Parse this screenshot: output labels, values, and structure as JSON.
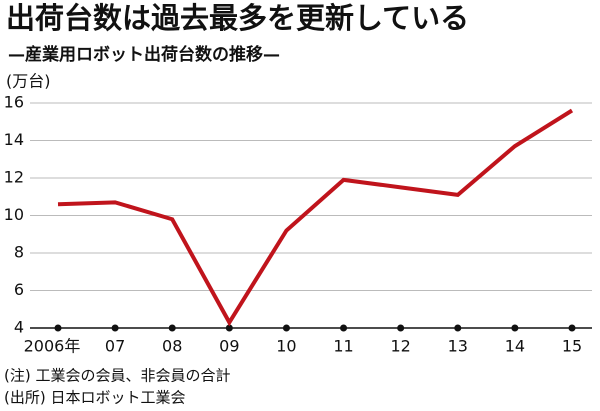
{
  "chart_data": {
    "type": "line",
    "title": "出荷台数は過去最多を更新している",
    "subtitle": "—産業用ロボット出荷台数の推移—",
    "y_label": "(万台)",
    "categories": [
      "2006年",
      "07",
      "08",
      "09",
      "10",
      "11",
      "12",
      "13",
      "14",
      "15"
    ],
    "values": [
      10.6,
      10.7,
      9.8,
      4.3,
      9.2,
      11.9,
      11.5,
      11.1,
      13.7,
      15.6
    ],
    "color": "#c0141c",
    "ylim": [
      4,
      16
    ],
    "yticks": [
      4,
      6,
      8,
      10,
      12,
      14,
      16
    ],
    "grid": true,
    "notes": [
      "(注) 工業会の会員、非会員の合計",
      "(出所) 日本ロボット工業会"
    ]
  }
}
